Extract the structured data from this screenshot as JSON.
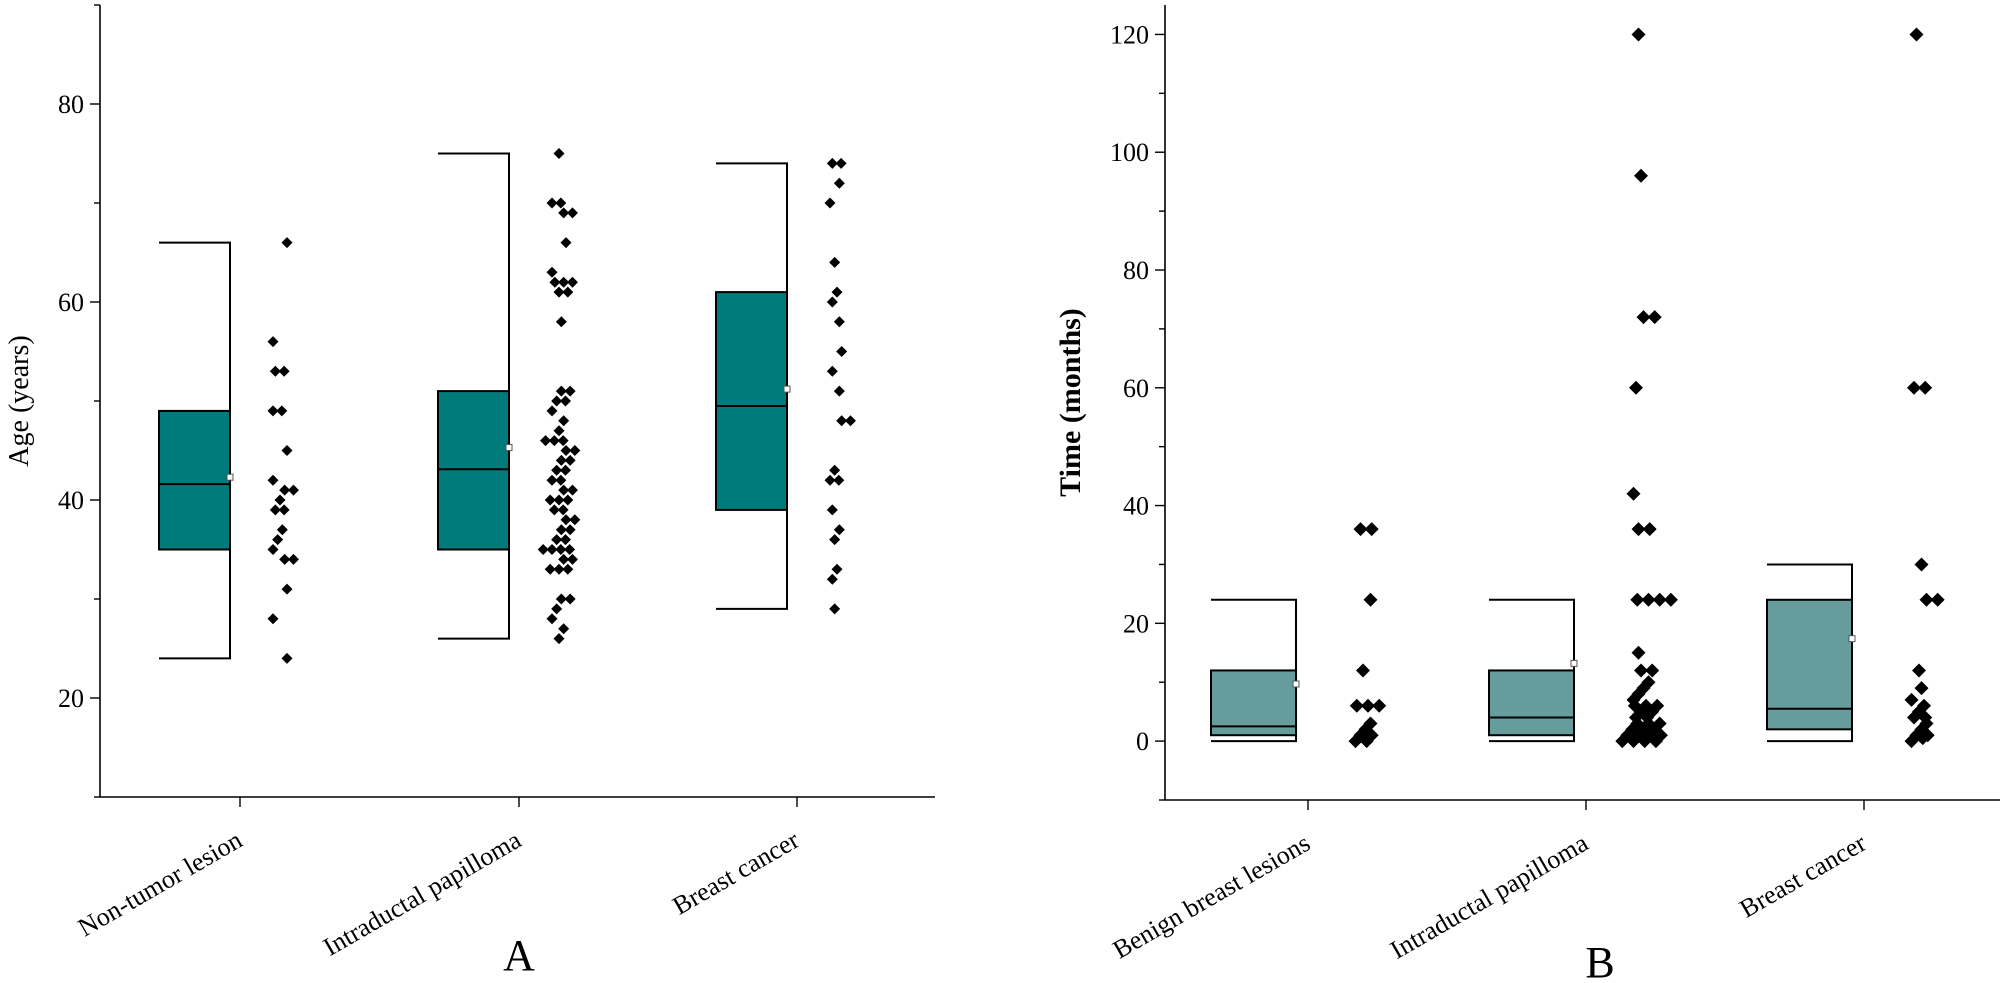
{
  "chart_data": [
    {
      "type": "box",
      "panel_label": "A",
      "title": "",
      "xlabel": "",
      "ylabel": "Age (years)",
      "ylim": [
        10,
        90
      ],
      "yticks": [
        20,
        40,
        60,
        80
      ],
      "box_color": "#007b7b",
      "categories": [
        "Non-tumor lesion",
        "Intraductal papilloma",
        "Breast cancer"
      ],
      "boxes": [
        {
          "category": "Non-tumor lesion",
          "q1": 35,
          "median": 41.6,
          "q3": 49,
          "mean": 42.3,
          "whisker_low": 24,
          "whisker_high": 66
        },
        {
          "category": "Intraductal papilloma",
          "q1": 35,
          "median": 43.1,
          "q3": 51,
          "mean": 45.3,
          "whisker_low": 26,
          "whisker_high": 75
        },
        {
          "category": "Breast cancer",
          "q1": 39,
          "median": 49.5,
          "q3": 61,
          "mean": 51.2,
          "whisker_low": 29,
          "whisker_high": 74
        }
      ],
      "points": [
        [
          66,
          56,
          53,
          53,
          49,
          49,
          45,
          42,
          41,
          41,
          40,
          39,
          39,
          37,
          36,
          35,
          34,
          34,
          31,
          28,
          24
        ],
        [
          75,
          70,
          70,
          69,
          69,
          66,
          63,
          62,
          62,
          62,
          61,
          61,
          58,
          51,
          51,
          50,
          50,
          49,
          48,
          47,
          46,
          46,
          46,
          45,
          45,
          44,
          44,
          43,
          43,
          42,
          42,
          41,
          41,
          40,
          40,
          40,
          39,
          39,
          38,
          38,
          37,
          37,
          36,
          36,
          35,
          35,
          35,
          35,
          34,
          34,
          33,
          33,
          33,
          30,
          30,
          29,
          28,
          27,
          26
        ],
        [
          74,
          74,
          72,
          70,
          64,
          61,
          60,
          58,
          55,
          53,
          51,
          48,
          48,
          43,
          42,
          42,
          39,
          37,
          36,
          33,
          32,
          29
        ]
      ]
    },
    {
      "type": "box",
      "panel_label": "B",
      "title": "",
      "xlabel": "",
      "ylabel": "Time (months)",
      "ylim": [
        -10,
        125
      ],
      "yticks": [
        0,
        20,
        40,
        60,
        80,
        100,
        120
      ],
      "box_color": "#669c9c",
      "categories": [
        "Benign breast lesions",
        "Intraductal papilloma",
        "Breast cancer"
      ],
      "boxes": [
        {
          "category": "Benign breast lesions",
          "q1": 1,
          "median": 2.5,
          "q3": 12,
          "mean": 9.7,
          "whisker_low": 0,
          "whisker_high": 24
        },
        {
          "category": "Intraductal papilloma",
          "q1": 1,
          "median": 4,
          "q3": 12,
          "mean": 13.2,
          "whisker_low": 0,
          "whisker_high": 24
        },
        {
          "category": "Breast cancer",
          "q1": 2,
          "median": 5.5,
          "q3": 24,
          "mean": 17.4,
          "whisker_low": 0,
          "whisker_high": 30
        }
      ],
      "points": [
        [
          36,
          36,
          24,
          12,
          6,
          6,
          6,
          3,
          2,
          1,
          1,
          0.5,
          0,
          0
        ],
        [
          120,
          96,
          72,
          72,
          60,
          42,
          36,
          36,
          24,
          24,
          24,
          24,
          15,
          12,
          12,
          10,
          9,
          8,
          7,
          6,
          6,
          6,
          5,
          5,
          4,
          4,
          3,
          3,
          3,
          2,
          2,
          2,
          1,
          1,
          1,
          1,
          0.5,
          0.5,
          0,
          0,
          0,
          0
        ],
        [
          120,
          60,
          60,
          30,
          24,
          24,
          12,
          9,
          7,
          6,
          5,
          4,
          4,
          3,
          2,
          1,
          1,
          0.5,
          0
        ]
      ]
    }
  ]
}
